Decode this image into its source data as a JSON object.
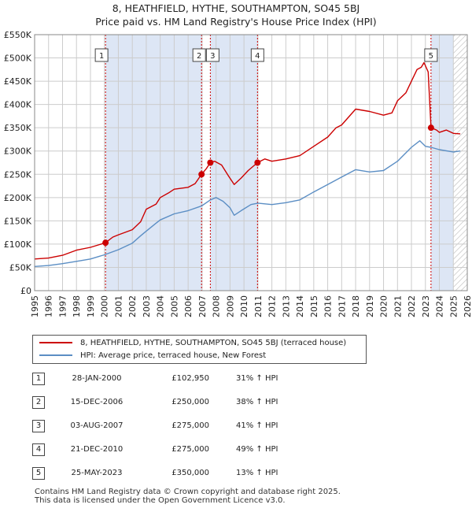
{
  "title_line1": "8, HEATHFIELD, HYTHE, SOUTHAMPTON, SO45 5BJ",
  "title_line2": "Price paid vs. HM Land Registry's House Price Index (HPI)",
  "colors": {
    "property": "#cc0000",
    "hpi": "#5b8ec4",
    "shade": "#dde6f5",
    "grid": "#cccccc",
    "marker_line": "#cc0000"
  },
  "chart_data": {
    "type": "line",
    "title": "Price paid vs. HM Land Registry's House Price Index (HPI)",
    "xlim": [
      1995,
      2026
    ],
    "ylim": [
      0,
      550000
    ],
    "y_ticks": [
      0,
      50000,
      100000,
      150000,
      200000,
      250000,
      300000,
      350000,
      400000,
      450000,
      500000,
      550000
    ],
    "y_tick_labels": [
      "£0",
      "£50K",
      "£100K",
      "£150K",
      "£200K",
      "£250K",
      "£300K",
      "£350K",
      "£400K",
      "£450K",
      "£500K",
      "£550K"
    ],
    "x_ticks": [
      1995,
      1996,
      1997,
      1998,
      1999,
      2000,
      2001,
      2002,
      2003,
      2004,
      2005,
      2006,
      2007,
      2008,
      2009,
      2010,
      2011,
      2012,
      2013,
      2014,
      2015,
      2016,
      2017,
      2018,
      2019,
      2020,
      2021,
      2022,
      2023,
      2024,
      2025,
      2026
    ],
    "shaded_ranges": [
      [
        2000.08,
        2006.96
      ],
      [
        2007.59,
        2010.97
      ],
      [
        2023.4,
        2026
      ]
    ],
    "hatched_range": [
      2025.0,
      2026
    ],
    "series": [
      {
        "name": "8, HEATHFIELD, HYTHE, SOUTHAMPTON, SO45 5BJ (terraced house)",
        "x": [
          1995,
          1996,
          1997,
          1998,
          1999,
          2000.08,
          2000.6,
          2001,
          2002,
          2002.6,
          2003,
          2003.7,
          2004,
          2004.6,
          2005,
          2006,
          2006.5,
          2006.96,
          2007.3,
          2007.59,
          2007.9,
          2008.4,
          2008.9,
          2009.3,
          2009.8,
          2010.3,
          2010.97,
          2011.5,
          2012,
          2013,
          2014,
          2015,
          2016,
          2016.6,
          2017,
          2018,
          2019,
          2020,
          2020.6,
          2021,
          2021.6,
          2022,
          2022.4,
          2022.7,
          2022.9,
          2023.2,
          2023.4,
          2023.8,
          2024,
          2024.5,
          2025,
          2025.5
        ],
        "y": [
          68000,
          70000,
          76000,
          87000,
          93000,
          102950,
          115000,
          120000,
          131000,
          148000,
          175000,
          186000,
          200000,
          210000,
          218000,
          222000,
          230000,
          250000,
          262000,
          275000,
          278000,
          270000,
          246000,
          228000,
          242000,
          258000,
          275000,
          283000,
          278000,
          283000,
          290000,
          310000,
          330000,
          350000,
          356000,
          390000,
          385000,
          377000,
          382000,
          408000,
          425000,
          450000,
          475000,
          480000,
          490000,
          470000,
          350000,
          345000,
          340000,
          345000,
          338000,
          337000
        ]
      },
      {
        "name": "HPI: Average price, terraced house, New Forest",
        "x": [
          1995,
          1996,
          1997,
          1998,
          1999,
          2000,
          2001,
          2002,
          2002.6,
          2003,
          2003.7,
          2004,
          2005,
          2006,
          2006.96,
          2007.59,
          2008,
          2008.5,
          2009,
          2009.3,
          2009.8,
          2010.5,
          2011,
          2012,
          2013,
          2014,
          2015,
          2016,
          2017,
          2018,
          2019,
          2020,
          2021,
          2022,
          2022.6,
          2023,
          2023.4,
          2024,
          2025,
          2025.5
        ],
        "y": [
          52000,
          54000,
          58000,
          63000,
          68000,
          77000,
          88000,
          102000,
          118000,
          128000,
          145000,
          152000,
          165000,
          172000,
          182000,
          195000,
          200000,
          192000,
          178000,
          162000,
          172000,
          185000,
          188000,
          185000,
          189000,
          195000,
          212000,
          228000,
          244000,
          260000,
          255000,
          258000,
          278000,
          308000,
          322000,
          310000,
          308000,
          303000,
          298000,
          300000
        ]
      }
    ],
    "sales": [
      {
        "id": "1",
        "x": 2000.08,
        "y": 102950
      },
      {
        "id": "2",
        "x": 2006.96,
        "y": 250000
      },
      {
        "id": "3",
        "x": 2007.59,
        "y": 275000
      },
      {
        "id": "4",
        "x": 2010.97,
        "y": 275000
      },
      {
        "id": "5",
        "x": 2023.4,
        "y": 350000
      }
    ]
  },
  "legend": {
    "property_label": "8, HEATHFIELD, HYTHE, SOUTHAMPTON, SO45 5BJ (terraced house)",
    "hpi_label": "HPI: Average price, terraced house, New Forest"
  },
  "sales_table": [
    {
      "num": "1",
      "date": "28-JAN-2000",
      "price": "£102,950",
      "hpi": "31% ↑ HPI"
    },
    {
      "num": "2",
      "date": "15-DEC-2006",
      "price": "£250,000",
      "hpi": "38% ↑ HPI"
    },
    {
      "num": "3",
      "date": "03-AUG-2007",
      "price": "£275,000",
      "hpi": "41% ↑ HPI"
    },
    {
      "num": "4",
      "date": "21-DEC-2010",
      "price": "£275,000",
      "hpi": "49% ↑ HPI"
    },
    {
      "num": "5",
      "date": "25-MAY-2023",
      "price": "£350,000",
      "hpi": "13% ↑ HPI"
    }
  ],
  "footer": {
    "line1": "Contains HM Land Registry data © Crown copyright and database right 2025.",
    "line2": "This data is licensed under the Open Government Licence v3.0."
  }
}
